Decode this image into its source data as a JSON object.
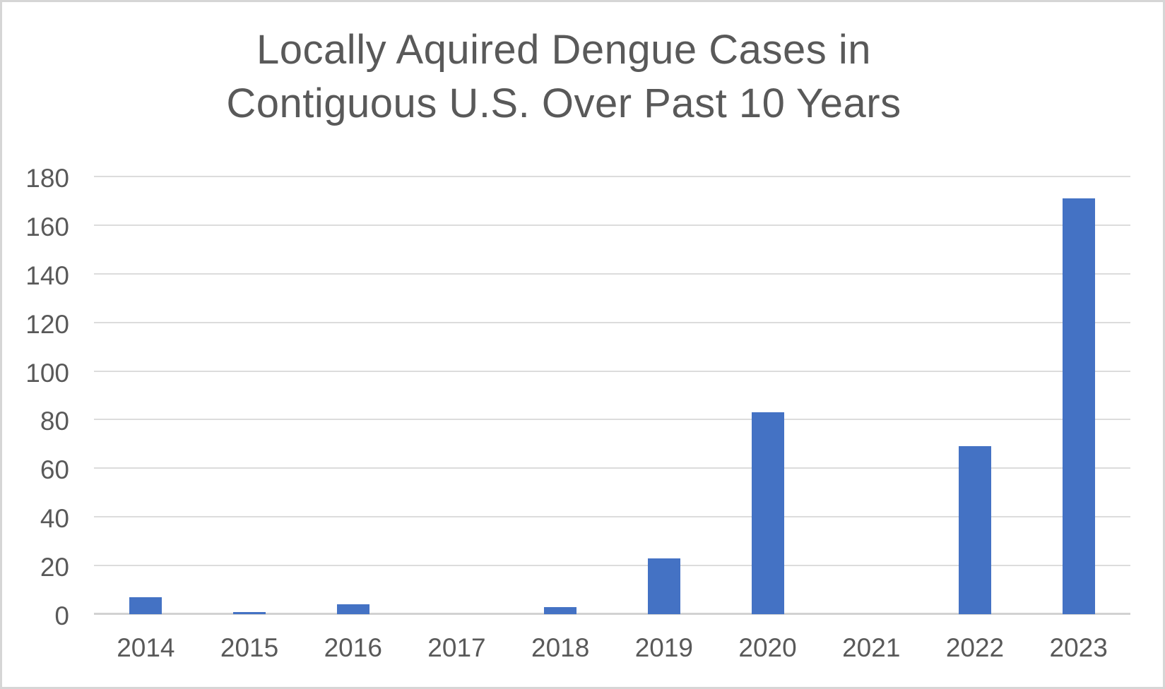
{
  "chart_data": {
    "type": "bar",
    "title": "Locally Aquired Dengue Cases in\nContiguous U.S. Over Past 10 Years",
    "xlabel": "",
    "ylabel": "",
    "categories": [
      "2014",
      "2015",
      "2016",
      "2017",
      "2018",
      "2019",
      "2020",
      "2021",
      "2022",
      "2023"
    ],
    "values": [
      7,
      1,
      4,
      0,
      3,
      23,
      83,
      0,
      69,
      171
    ],
    "ylim": [
      0,
      180
    ],
    "y_ticks": [
      0,
      20,
      40,
      60,
      80,
      100,
      120,
      140,
      160,
      180
    ],
    "grid": true,
    "legend": "none",
    "colors": {
      "bar": "#4472C4",
      "gridline": "#dcdcdc",
      "axis_line": "#d2d2d2",
      "text": "#595959",
      "frame_border": "#d6d6d6",
      "background": "#ffffff"
    }
  }
}
